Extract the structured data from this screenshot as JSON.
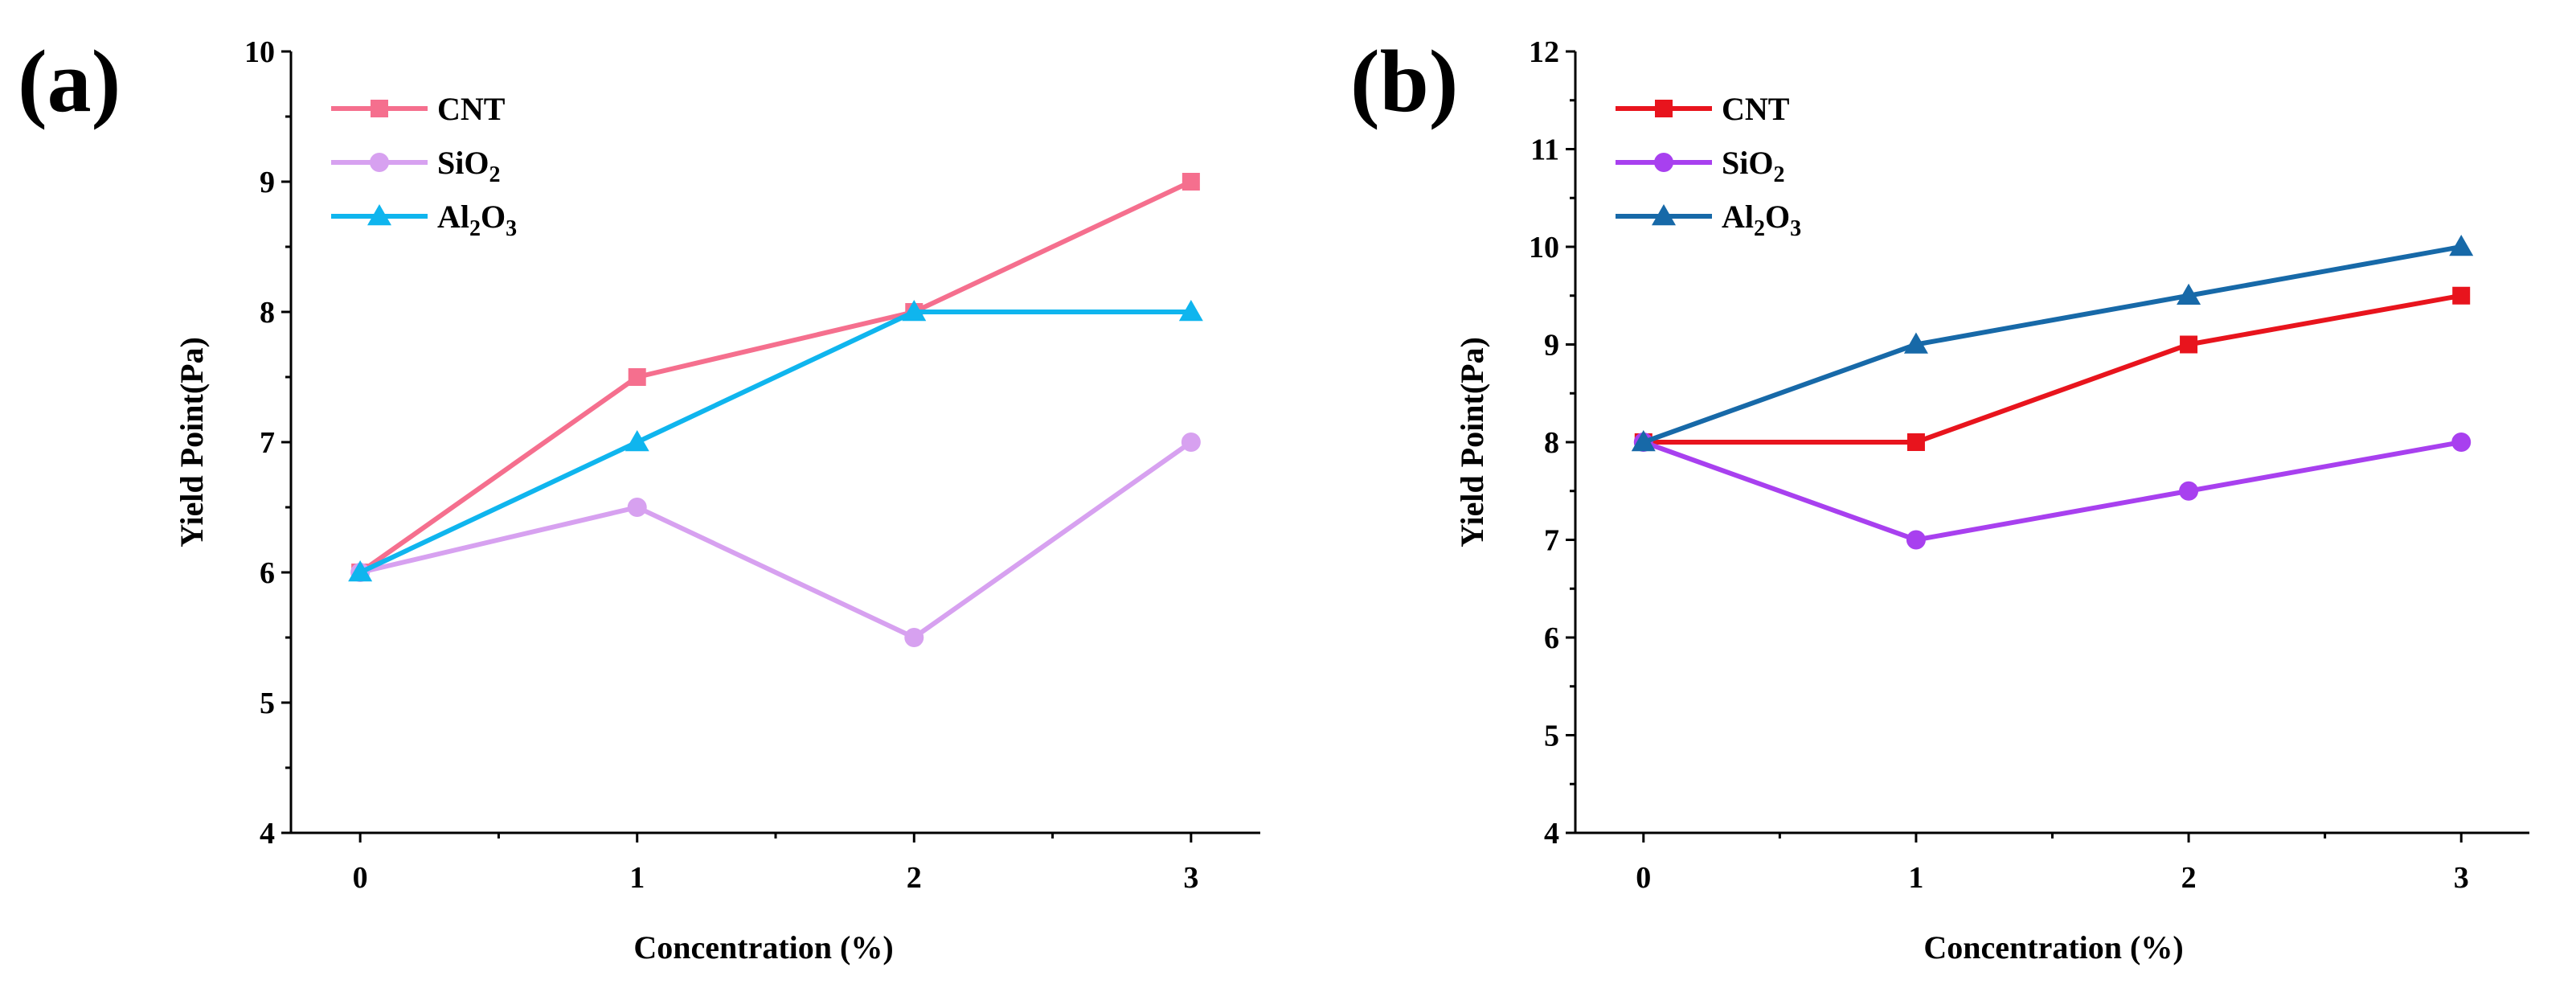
{
  "chart_data": [
    {
      "type": "line",
      "panel_label": "(a)",
      "xlabel": "Concentration (%)",
      "ylabel": "Yield Point(Pa)",
      "x": [
        0,
        1,
        2,
        3
      ],
      "xlim": [
        -0.25,
        3.25
      ],
      "ylim": [
        4,
        10
      ],
      "x_ticks": [
        "0",
        "1",
        "2",
        "3"
      ],
      "y_ticks": [
        "4",
        "5",
        "6",
        "7",
        "8",
        "9",
        "10"
      ],
      "legend_position": "top-left",
      "series": [
        {
          "name": "CNT",
          "formula": [
            "CNT"
          ],
          "marker": "square",
          "color": "#f56f8e",
          "values": [
            6,
            7.5,
            8,
            9
          ]
        },
        {
          "name": "SiO2",
          "formula": [
            "SiO",
            "2"
          ],
          "marker": "circle",
          "color": "#d7a1f0",
          "values": [
            6,
            6.5,
            5.5,
            7
          ]
        },
        {
          "name": "Al2O3",
          "formula": [
            "Al",
            "2",
            "O",
            "3"
          ],
          "marker": "triangle",
          "color": "#0fb5ee",
          "values": [
            6,
            7,
            8,
            8
          ]
        }
      ]
    },
    {
      "type": "line",
      "panel_label": "(b)",
      "xlabel": "Concentration (%)",
      "ylabel": "Yield Point(Pa)",
      "x": [
        0,
        1,
        2,
        3
      ],
      "xlim": [
        -0.25,
        3.25
      ],
      "ylim": [
        4,
        12
      ],
      "x_ticks": [
        "0",
        "1",
        "2",
        "3"
      ],
      "y_ticks": [
        "4",
        "5",
        "6",
        "7",
        "8",
        "9",
        "10",
        "11",
        "12"
      ],
      "legend_position": "top-left",
      "series": [
        {
          "name": "CNT",
          "formula": [
            "CNT"
          ],
          "marker": "square",
          "color": "#e8141d",
          "values": [
            8,
            8,
            9,
            9.5
          ]
        },
        {
          "name": "SiO2",
          "formula": [
            "SiO",
            "2"
          ],
          "marker": "circle",
          "color": "#a840ef",
          "values": [
            8,
            7,
            7.5,
            8
          ]
        },
        {
          "name": "Al2O3",
          "formula": [
            "Al",
            "2",
            "O",
            "3"
          ],
          "marker": "triangle",
          "color": "#1769a8",
          "values": [
            8,
            9,
            9.5,
            10
          ]
        }
      ]
    }
  ]
}
